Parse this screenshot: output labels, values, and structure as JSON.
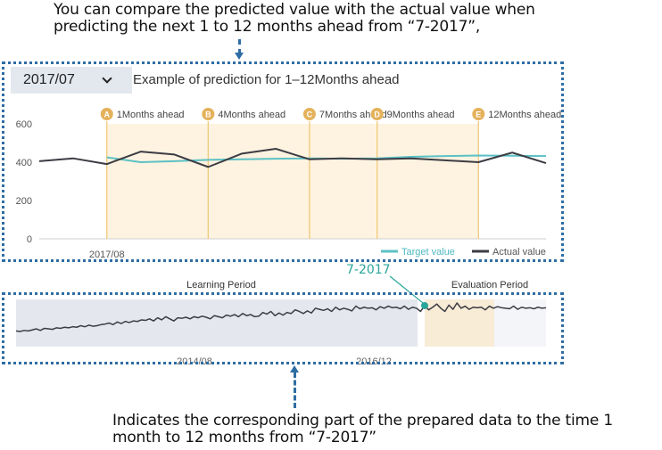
{
  "annotations": {
    "top_callout": "You can compare the predicted value with the actual value when predicting the next 1 to 12 months ahead from “7-2017”,",
    "bottom_callout": "Indicates the corresponding part of the prepared data to the time 1 month to 12 months from “7-2017”",
    "point_callout": "7-2017"
  },
  "header": {
    "selected_month": "2017/07",
    "title": "Example of prediction for 1–12Months ahead"
  },
  "colors": {
    "target_line": "#5cc1c5",
    "actual_line": "#3c3c44",
    "prediction_band": "#fdf3e0",
    "marker_line": "#f1c97b",
    "marker_badge": "#e4b25c",
    "learning_band": "#e4e7ee",
    "evaluation_band": "#f8ecd6",
    "point_marker": "#2aa59a"
  },
  "chart_data": [
    {
      "type": "line",
      "title": "Example of prediction for 1–12Months ahead",
      "ylim": [
        0,
        600
      ],
      "yticks": [
        0,
        200,
        400,
        600
      ],
      "xtick_labels": [
        "2017/08"
      ],
      "markers": [
        {
          "letter": "A",
          "label": "1Months ahead",
          "index": 2
        },
        {
          "letter": "B",
          "label": "4Months ahead",
          "index": 5
        },
        {
          "letter": "C",
          "label": "7Months ahead",
          "index": 8
        },
        {
          "letter": "D",
          "label": "9Months ahead",
          "index": 10
        },
        {
          "letter": "E",
          "label": "12Months ahead",
          "index": 13
        }
      ],
      "series": [
        {
          "name": "Target value",
          "start_index": 2,
          "values": [
            425,
            400,
            405,
            412,
            415,
            418,
            420,
            418,
            420,
            428,
            432,
            435,
            434,
            432
          ]
        },
        {
          "name": "Actual value",
          "start_index": 0,
          "values": [
            405,
            420,
            390,
            455,
            440,
            375,
            445,
            470,
            415,
            420,
            415,
            420,
            410,
            400,
            450,
            395
          ]
        }
      ]
    },
    {
      "type": "line",
      "subtype": "navigator",
      "period_labels": [
        "Learning Period",
        "Evaluation Period"
      ],
      "xtick_labels": [
        "2014/08",
        "2016/12"
      ],
      "values": [
        15,
        14,
        16,
        15,
        17,
        19,
        16,
        20,
        19,
        18,
        21,
        20,
        22,
        21,
        23,
        22,
        25,
        23,
        26,
        24,
        25,
        27,
        28,
        30,
        27,
        32,
        29,
        33,
        31,
        34,
        33,
        36,
        35,
        38,
        34,
        40,
        36,
        42,
        38,
        34,
        40,
        39,
        41,
        38,
        42,
        40,
        43,
        41,
        38,
        44,
        42,
        40,
        45,
        43,
        46,
        42,
        48,
        44,
        46,
        42,
        43,
        50,
        47,
        52,
        44,
        49,
        45,
        50,
        48,
        55,
        52,
        48,
        53,
        49,
        58,
        56,
        54,
        57,
        52,
        60,
        55,
        58,
        56,
        53,
        62,
        57,
        60,
        58,
        59,
        55,
        61,
        58,
        62,
        59,
        60,
        57,
        62,
        56,
        60,
        58,
        52,
        63,
        55,
        60,
        66,
        58,
        52,
        64,
        56,
        68,
        58,
        62,
        56,
        60,
        59,
        60,
        55,
        62,
        58,
        61,
        59,
        58,
        57,
        62,
        56,
        60,
        58,
        59,
        57,
        60,
        58,
        59
      ]
    }
  ]
}
